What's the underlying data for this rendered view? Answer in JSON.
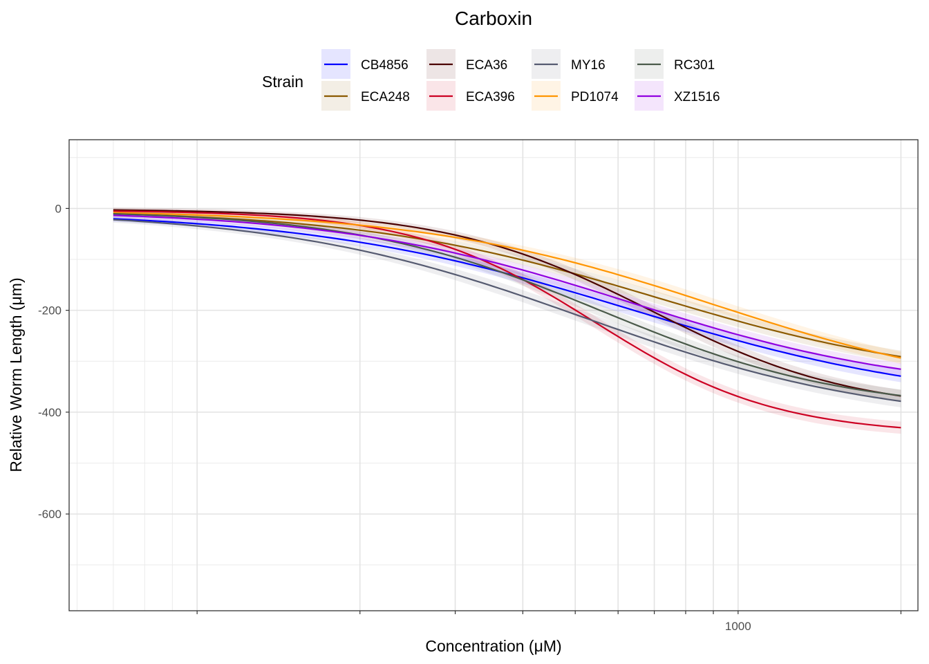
{
  "chart_data": {
    "type": "line",
    "title": "Carboxin",
    "xlabel": "Concentration (μM)",
    "ylabel": "Relative Worm Length (μm)",
    "x_scale": "log10",
    "xlim": [
      58,
      2150
    ],
    "ylim": [
      -790,
      135
    ],
    "x_ticks": [
      {
        "value": 1000,
        "label": "1000"
      }
    ],
    "y_ticks": [
      {
        "value": 0,
        "label": "0"
      },
      {
        "value": -200,
        "label": "-200"
      },
      {
        "value": -400,
        "label": "-400"
      },
      {
        "value": -600,
        "label": "-600"
      }
    ],
    "grid": true,
    "legend": {
      "title": "Strain",
      "position": "top"
    },
    "x_range_curve": [
      70,
      2000
    ],
    "series": [
      {
        "name": "CB4856",
        "color": "#0000ff",
        "top": -5,
        "bottom": -390,
        "ec50": 630,
        "hill": 1.45,
        "band": 12
      },
      {
        "name": "ECA248",
        "color": "#8b5a00",
        "top": -2,
        "bottom": -345,
        "ec50": 700,
        "hill": 1.6,
        "band": 12
      },
      {
        "name": "ECA36",
        "color": "#4a0000",
        "top": -1,
        "bottom": -400,
        "ec50": 690,
        "hill": 2.3,
        "band": 12
      },
      {
        "name": "ECA396",
        "color": "#cc0022",
        "top": -3,
        "bottom": -445,
        "ec50": 545,
        "hill": 2.6,
        "band": 12
      },
      {
        "name": "MY16",
        "color": "#555a70",
        "top": -4,
        "bottom": -425,
        "ec50": 520,
        "hill": 1.55,
        "band": 12
      },
      {
        "name": "PD1074",
        "color": "#ff9500",
        "top": -2,
        "bottom": -375,
        "ec50": 900,
        "hill": 1.6,
        "band": 12
      },
      {
        "name": "RC301",
        "color": "#4a5a4a",
        "top": -3,
        "bottom": -400,
        "ec50": 560,
        "hill": 1.9,
        "band": 12
      },
      {
        "name": "XZ1516",
        "color": "#9000e0",
        "top": -3,
        "bottom": -365,
        "ec50": 630,
        "hill": 1.6,
        "band": 12
      }
    ]
  }
}
